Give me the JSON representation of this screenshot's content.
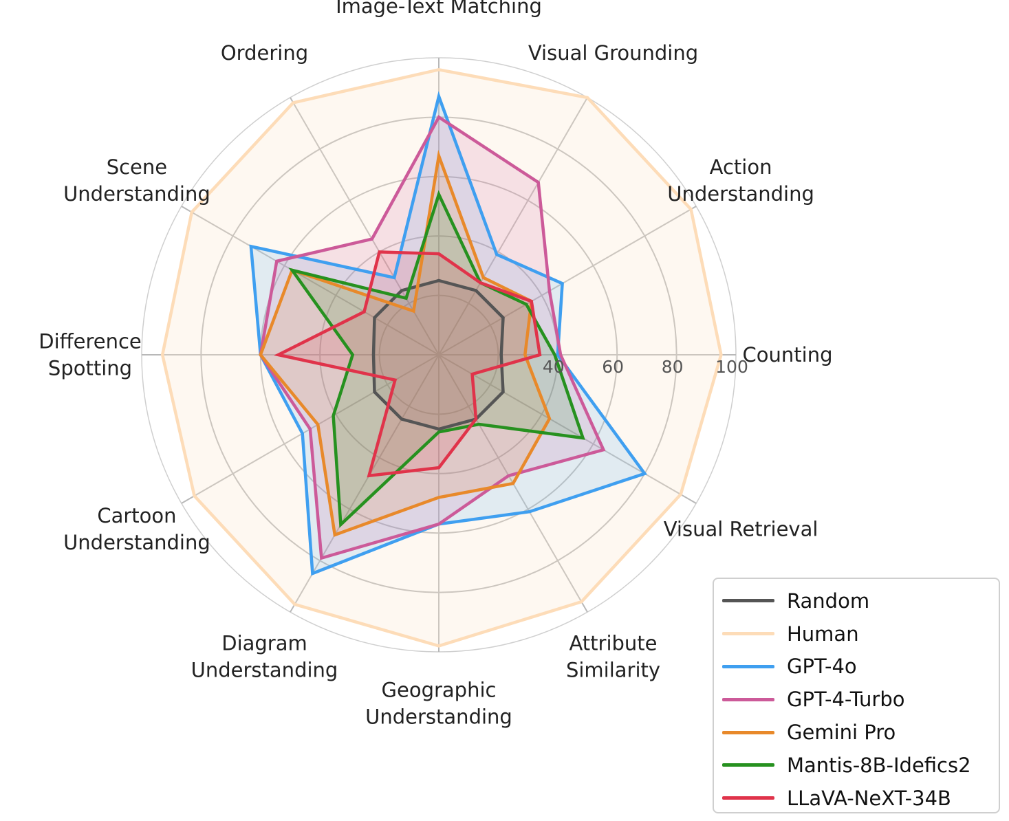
{
  "chart_data": {
    "type": "radar",
    "axes": [
      {
        "label": "Image-Text Matching"
      },
      {
        "label": "Visual Grounding"
      },
      {
        "label": "Action\nUnderstanding"
      },
      {
        "label": "Counting"
      },
      {
        "label": "Visual Retrieval"
      },
      {
        "label": "Attribute\nSimilarity"
      },
      {
        "label": "Geographic\nUnderstanding"
      },
      {
        "label": "Diagram\nUnderstanding"
      },
      {
        "label": "Cartoon\nUnderstanding"
      },
      {
        "label": "Difference\nSpotting"
      },
      {
        "label": "Scene\nUnderstanding"
      },
      {
        "label": "Ordering"
      }
    ],
    "rlim": [
      0,
      100
    ],
    "rticks": [
      40,
      60,
      80,
      100
    ],
    "gridlines": [
      20,
      40,
      60,
      80,
      100
    ],
    "series": [
      {
        "name": "Random",
        "color": "#555555",
        "fill": "#555555",
        "values": [
          25,
          25,
          25,
          21,
          25,
          25,
          25,
          25,
          25,
          22,
          25,
          25
        ]
      },
      {
        "name": "Human",
        "color": "#fddcb8",
        "fill": "#fde8d2",
        "values": [
          96,
          100,
          98,
          95,
          94,
          96,
          98,
          97,
          95,
          93,
          96,
          98
        ]
      },
      {
        "name": "GPT-4o",
        "color": "#3f9ff0",
        "fill": "#3f9ff0",
        "values": [
          87,
          39,
          48,
          40,
          80,
          61,
          57,
          85,
          53,
          60,
          73,
          30
        ]
      },
      {
        "name": "GPT-4-Turbo",
        "color": "#cc5a99",
        "fill": "#cc5a99",
        "values": [
          80,
          67,
          43,
          41,
          64,
          47,
          57,
          79,
          50,
          60,
          63,
          45
        ]
      },
      {
        "name": "Gemini Pro",
        "color": "#e8892a",
        "fill": "#e8892a",
        "values": [
          67,
          30,
          36,
          29,
          43,
          50,
          48,
          70,
          47,
          60,
          57,
          17
        ]
      },
      {
        "name": "Mantis-8B-Idefics2",
        "color": "#26911f",
        "fill": "#26911f",
        "values": [
          54,
          28,
          34,
          39,
          56,
          27,
          26,
          66,
          41,
          29,
          57,
          22
        ]
      },
      {
        "name": "LLaVA-NeXT-34B",
        "color": "#e0334a",
        "fill": "#e0334a",
        "values": [
          34,
          28,
          36,
          34,
          13,
          25,
          38,
          47,
          17,
          54,
          29,
          40
        ]
      }
    ],
    "legend_position": "bottom-right"
  }
}
